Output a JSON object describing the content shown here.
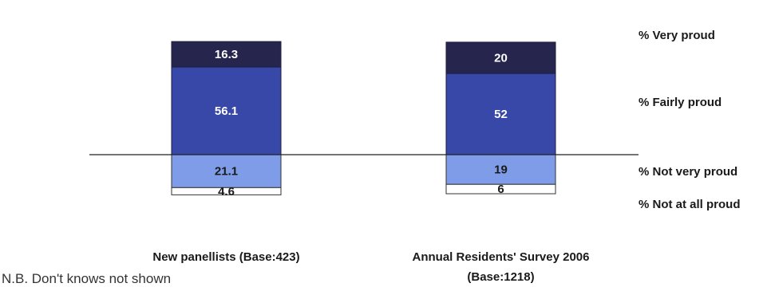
{
  "chart_data": {
    "type": "bar",
    "stacked": true,
    "diverging": true,
    "categories": [
      "New panellists (Base:423)",
      "Annual Residents' Survey 2006 (Base:1218)"
    ],
    "category_lines": [
      [
        "New panellists (Base:423)"
      ],
      [
        "Annual Residents' Survey 2006",
        "(Base:1218)"
      ]
    ],
    "series": [
      {
        "name": "% Very proud",
        "values": [
          16.3,
          20
        ],
        "labels": [
          "16.3",
          "20"
        ],
        "color": "#25254e",
        "label_color": "#ffffff",
        "side": "positive"
      },
      {
        "name": "% Fairly proud",
        "values": [
          56.1,
          52
        ],
        "labels": [
          "56.1",
          "52"
        ],
        "color": "#3848a8",
        "label_color": "#ffffff",
        "side": "positive"
      },
      {
        "name": "% Not very proud",
        "values": [
          21.1,
          19
        ],
        "labels": [
          "21.1",
          "19"
        ],
        "color": "#7e9ce8",
        "label_color": "#1a1a1a",
        "side": "negative"
      },
      {
        "name": "% Not at all proud",
        "values": [
          4.6,
          6
        ],
        "labels": [
          "4.6",
          "6"
        ],
        "color": "#ffffff",
        "label_color": "#1a1a1a",
        "side": "negative"
      }
    ],
    "legend_position": "right",
    "grid": false,
    "title": "",
    "xlabel": "",
    "ylabel": ""
  },
  "note": "N.B. Don't knows not shown"
}
